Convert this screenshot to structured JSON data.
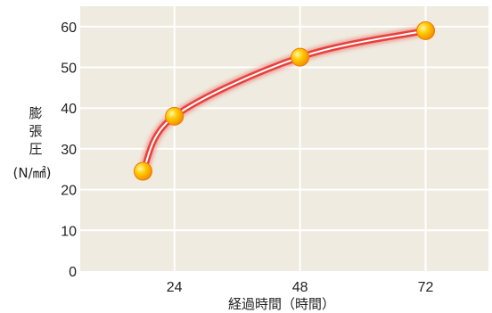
{
  "chart_data": {
    "type": "line",
    "title": "",
    "xlabel": "経過時間（時間）",
    "ylabel_lines": [
      "膨",
      "張",
      "圧",
      "(N/㎟)"
    ],
    "x": [
      18,
      24,
      48,
      72
    ],
    "y": [
      24.5,
      38,
      52.5,
      59
    ],
    "xlim": [
      6,
      84
    ],
    "ylim": [
      0,
      65
    ],
    "x_ticks": [
      24,
      48,
      72
    ],
    "y_ticks": [
      0,
      10,
      20,
      30,
      40,
      50,
      60
    ],
    "grid": true,
    "legend": "none"
  },
  "colors": {
    "plot_background": "#efebe0",
    "grid": "#ffffff",
    "line": "#e8403c",
    "line_highlight": "#ffffff",
    "marker_fill": "#ffb400",
    "marker_edge": "#f07800"
  }
}
